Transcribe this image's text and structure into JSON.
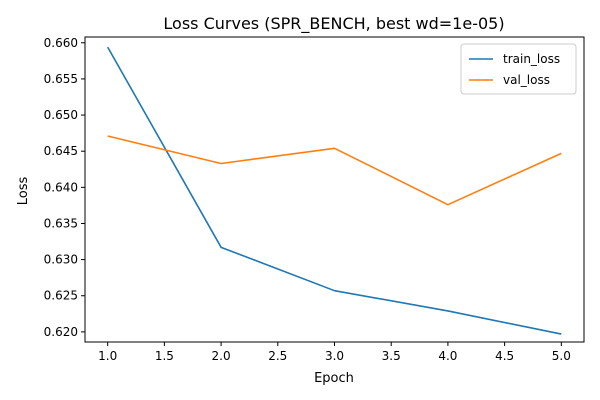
{
  "chart_data": {
    "type": "line",
    "title": "Loss Curves (SPR_BENCH, best wd=1e-05)",
    "xlabel": "Epoch",
    "ylabel": "Loss",
    "x": [
      1,
      2,
      3,
      4,
      5
    ],
    "xlim": [
      0.8,
      5.2
    ],
    "ylim": [
      0.6186,
      0.6608
    ],
    "xticks": [
      "1.0",
      "1.5",
      "2.0",
      "2.5",
      "3.0",
      "3.5",
      "4.0",
      "4.5",
      "5.0"
    ],
    "yticks": [
      "0.620",
      "0.625",
      "0.630",
      "0.635",
      "0.640",
      "0.645",
      "0.650",
      "0.655",
      "0.660"
    ],
    "grid": false,
    "legend_position": "top-right",
    "series": [
      {
        "name": "train_loss",
        "color": "#1f77b4",
        "values": [
          0.6594,
          0.6317,
          0.6257,
          0.6229,
          0.6197
        ]
      },
      {
        "name": "val_loss",
        "color": "#ff7f0e",
        "values": [
          0.6471,
          0.6433,
          0.6454,
          0.6376,
          0.6447
        ]
      }
    ]
  }
}
